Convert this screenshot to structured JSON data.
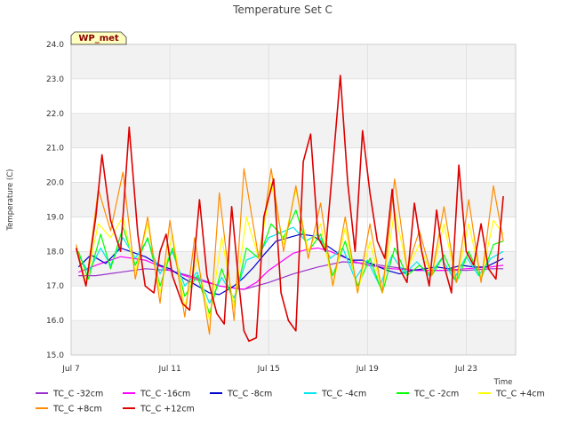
{
  "chart_data": {
    "type": "line",
    "title": "Temperature Set C",
    "xlabel": "Time",
    "ylabel": "Temperature (C)",
    "badge": "WP_met",
    "ylim": [
      15.0,
      24.0
    ],
    "yticks": [
      "15.0",
      "16.0",
      "17.0",
      "18.0",
      "19.0",
      "20.0",
      "21.0",
      "22.0",
      "23.0",
      "24.0"
    ],
    "xlim_days": [
      7,
      25
    ],
    "xticks": [
      {
        "day": 7,
        "label": "Jul 7"
      },
      {
        "day": 11,
        "label": "Jul 11"
      },
      {
        "day": 15,
        "label": "Jul 15"
      },
      {
        "day": 19,
        "label": "Jul 19"
      },
      {
        "day": 23,
        "label": "Jul 23"
      }
    ],
    "grid": true,
    "legend_position": "bottom",
    "series": [
      {
        "name": "TC_C -32cm",
        "color": "#9932cc",
        "values": [
          [
            7.3,
            17.3
          ],
          [
            8.0,
            17.3
          ],
          [
            9.0,
            17.4
          ],
          [
            10.0,
            17.5
          ],
          [
            11.0,
            17.45
          ],
          [
            12.0,
            17.25
          ],
          [
            13.0,
            17.0
          ],
          [
            14.0,
            16.9
          ],
          [
            15.0,
            17.1
          ],
          [
            16.0,
            17.35
          ],
          [
            17.0,
            17.55
          ],
          [
            18.0,
            17.7
          ],
          [
            19.0,
            17.65
          ],
          [
            20.0,
            17.55
          ],
          [
            21.0,
            17.45
          ],
          [
            22.0,
            17.45
          ],
          [
            23.0,
            17.45
          ],
          [
            24.0,
            17.5
          ],
          [
            24.5,
            17.5
          ]
        ]
      },
      {
        "name": "TC_C -16cm",
        "color": "#ff00ff",
        "values": [
          [
            7.3,
            17.4
          ],
          [
            8.0,
            17.6
          ],
          [
            9.0,
            17.85
          ],
          [
            10.0,
            17.75
          ],
          [
            11.0,
            17.45
          ],
          [
            12.0,
            17.2
          ],
          [
            13.0,
            17.0
          ],
          [
            14.0,
            16.9
          ],
          [
            14.5,
            17.1
          ],
          [
            15.0,
            17.45
          ],
          [
            16.0,
            17.95
          ],
          [
            16.5,
            18.05
          ],
          [
            17.0,
            18.1
          ],
          [
            17.5,
            18.0
          ],
          [
            18.0,
            17.85
          ],
          [
            18.5,
            17.7
          ],
          [
            19.0,
            17.6
          ],
          [
            20.0,
            17.5
          ],
          [
            21.0,
            17.45
          ],
          [
            22.0,
            17.45
          ],
          [
            23.0,
            17.5
          ],
          [
            24.0,
            17.55
          ],
          [
            24.5,
            17.6
          ]
        ]
      },
      {
        "name": "TC_C -8cm",
        "color": "#0000cd",
        "values": [
          [
            7.3,
            17.55
          ],
          [
            7.8,
            17.9
          ],
          [
            8.4,
            17.65
          ],
          [
            9.0,
            18.1
          ],
          [
            9.6,
            17.95
          ],
          [
            10.0,
            17.85
          ],
          [
            10.6,
            17.6
          ],
          [
            11.0,
            17.5
          ],
          [
            11.6,
            17.2
          ],
          [
            12.0,
            17.05
          ],
          [
            12.6,
            16.8
          ],
          [
            13.0,
            16.75
          ],
          [
            13.6,
            17.0
          ],
          [
            14.0,
            17.25
          ],
          [
            14.4,
            17.55
          ],
          [
            14.8,
            17.9
          ],
          [
            15.3,
            18.3
          ],
          [
            15.8,
            18.4
          ],
          [
            16.3,
            18.5
          ],
          [
            16.8,
            18.45
          ],
          [
            17.3,
            18.2
          ],
          [
            17.8,
            17.95
          ],
          [
            18.3,
            17.75
          ],
          [
            18.8,
            17.75
          ],
          [
            19.3,
            17.6
          ],
          [
            19.8,
            17.45
          ],
          [
            20.3,
            17.35
          ],
          [
            20.8,
            17.45
          ],
          [
            21.3,
            17.5
          ],
          [
            21.8,
            17.55
          ],
          [
            22.3,
            17.5
          ],
          [
            22.8,
            17.6
          ],
          [
            23.3,
            17.55
          ],
          [
            23.8,
            17.55
          ],
          [
            24.5,
            17.8
          ]
        ]
      },
      {
        "name": "TC_C -4cm",
        "color": "#00e5ee",
        "values": [
          [
            7.3,
            17.9
          ],
          [
            7.7,
            17.4
          ],
          [
            8.2,
            18.1
          ],
          [
            8.6,
            17.6
          ],
          [
            9.1,
            18.4
          ],
          [
            9.6,
            17.8
          ],
          [
            10.1,
            18.35
          ],
          [
            10.6,
            17.35
          ],
          [
            11.1,
            18.0
          ],
          [
            11.6,
            17.0
          ],
          [
            12.1,
            17.4
          ],
          [
            12.6,
            16.5
          ],
          [
            13.1,
            17.25
          ],
          [
            13.6,
            16.65
          ],
          [
            14.1,
            17.75
          ],
          [
            14.6,
            17.9
          ],
          [
            15.0,
            18.4
          ],
          [
            15.5,
            18.55
          ],
          [
            16.0,
            18.7
          ],
          [
            16.5,
            18.3
          ],
          [
            17.0,
            18.5
          ],
          [
            17.5,
            17.8
          ],
          [
            18.0,
            18.1
          ],
          [
            18.5,
            17.2
          ],
          [
            19.0,
            17.75
          ],
          [
            19.5,
            17.0
          ],
          [
            20.0,
            17.9
          ],
          [
            20.5,
            17.35
          ],
          [
            21.0,
            17.7
          ],
          [
            21.5,
            17.3
          ],
          [
            22.0,
            17.8
          ],
          [
            22.5,
            17.2
          ],
          [
            23.0,
            17.85
          ],
          [
            23.5,
            17.3
          ],
          [
            24.0,
            17.8
          ],
          [
            24.5,
            18.0
          ]
        ]
      },
      {
        "name": "TC_C -2cm",
        "color": "#00ff00",
        "values": [
          [
            7.3,
            18.0
          ],
          [
            7.7,
            17.2
          ],
          [
            8.2,
            18.5
          ],
          [
            8.6,
            17.5
          ],
          [
            9.1,
            18.7
          ],
          [
            9.6,
            17.6
          ],
          [
            10.1,
            18.4
          ],
          [
            10.6,
            17.0
          ],
          [
            11.1,
            18.1
          ],
          [
            11.6,
            16.7
          ],
          [
            12.1,
            17.3
          ],
          [
            12.6,
            16.2
          ],
          [
            13.1,
            17.5
          ],
          [
            13.6,
            16.5
          ],
          [
            14.1,
            18.1
          ],
          [
            14.6,
            17.8
          ],
          [
            15.1,
            18.8
          ],
          [
            15.6,
            18.4
          ],
          [
            16.1,
            19.2
          ],
          [
            16.6,
            18.0
          ],
          [
            17.1,
            18.5
          ],
          [
            17.6,
            17.3
          ],
          [
            18.1,
            18.3
          ],
          [
            18.6,
            17.0
          ],
          [
            19.1,
            17.8
          ],
          [
            19.6,
            16.8
          ],
          [
            20.1,
            18.1
          ],
          [
            20.6,
            17.3
          ],
          [
            21.1,
            17.6
          ],
          [
            21.6,
            17.3
          ],
          [
            22.1,
            17.9
          ],
          [
            22.6,
            17.1
          ],
          [
            23.1,
            18.0
          ],
          [
            23.6,
            17.2
          ],
          [
            24.1,
            18.2
          ],
          [
            24.5,
            18.3
          ]
        ]
      },
      {
        "name": "TC_C +4cm",
        "color": "#ffff00",
        "values": [
          [
            7.2,
            18.1
          ],
          [
            7.6,
            17.1
          ],
          [
            8.1,
            18.8
          ],
          [
            8.6,
            18.4
          ],
          [
            9.1,
            19.0
          ],
          [
            9.6,
            17.4
          ],
          [
            10.1,
            18.8
          ],
          [
            10.6,
            16.8
          ],
          [
            11.1,
            18.5
          ],
          [
            11.6,
            16.4
          ],
          [
            12.1,
            17.8
          ],
          [
            12.6,
            16.0
          ],
          [
            13.1,
            18.4
          ],
          [
            13.6,
            16.4
          ],
          [
            14.1,
            19.0
          ],
          [
            14.6,
            17.8
          ],
          [
            15.1,
            20.0
          ],
          [
            15.6,
            18.2
          ],
          [
            16.1,
            19.8
          ],
          [
            16.6,
            18.0
          ],
          [
            17.1,
            18.8
          ],
          [
            17.6,
            17.0
          ],
          [
            18.1,
            18.7
          ],
          [
            18.6,
            16.8
          ],
          [
            19.1,
            18.3
          ],
          [
            19.6,
            16.8
          ],
          [
            20.1,
            19.2
          ],
          [
            20.6,
            17.5
          ],
          [
            21.1,
            18.2
          ],
          [
            21.6,
            17.3
          ],
          [
            22.1,
            18.8
          ],
          [
            22.6,
            17.1
          ],
          [
            23.1,
            18.8
          ],
          [
            23.6,
            17.2
          ],
          [
            24.1,
            18.9
          ],
          [
            24.5,
            18.5
          ]
        ]
      },
      {
        "name": "TC_C +8cm",
        "color": "#ff8c00",
        "values": [
          [
            7.2,
            18.2
          ],
          [
            7.6,
            17.0
          ],
          [
            8.1,
            19.8
          ],
          [
            8.6,
            18.6
          ],
          [
            9.1,
            20.3
          ],
          [
            9.6,
            17.2
          ],
          [
            10.1,
            19.0
          ],
          [
            10.6,
            16.5
          ],
          [
            11.0,
            18.9
          ],
          [
            11.6,
            16.1
          ],
          [
            12.0,
            18.4
          ],
          [
            12.6,
            15.6
          ],
          [
            13.0,
            19.7
          ],
          [
            13.6,
            16.0
          ],
          [
            14.0,
            20.4
          ],
          [
            14.6,
            17.8
          ],
          [
            15.1,
            20.4
          ],
          [
            15.6,
            18.0
          ],
          [
            16.1,
            19.9
          ],
          [
            16.6,
            17.8
          ],
          [
            17.1,
            19.4
          ],
          [
            17.6,
            17.0
          ],
          [
            18.1,
            19.0
          ],
          [
            18.6,
            16.8
          ],
          [
            19.1,
            18.8
          ],
          [
            19.6,
            16.8
          ],
          [
            20.1,
            20.1
          ],
          [
            20.6,
            17.5
          ],
          [
            21.1,
            18.6
          ],
          [
            21.6,
            17.3
          ],
          [
            22.1,
            19.3
          ],
          [
            22.6,
            17.1
          ],
          [
            23.1,
            19.5
          ],
          [
            23.6,
            17.1
          ],
          [
            24.1,
            19.9
          ],
          [
            24.5,
            18.3
          ]
        ]
      },
      {
        "name": "TC_C +12cm",
        "color": "#dd0000",
        "values": [
          [
            7.2,
            18.1
          ],
          [
            7.6,
            17.0
          ],
          [
            8.0,
            19.0
          ],
          [
            8.25,
            20.8
          ],
          [
            8.6,
            18.9
          ],
          [
            9.0,
            18.0
          ],
          [
            9.35,
            21.6
          ],
          [
            9.7,
            18.5
          ],
          [
            10.0,
            17.0
          ],
          [
            10.35,
            16.8
          ],
          [
            10.6,
            18.0
          ],
          [
            10.85,
            18.5
          ],
          [
            11.1,
            17.3
          ],
          [
            11.5,
            16.5
          ],
          [
            11.8,
            16.3
          ],
          [
            12.2,
            19.5
          ],
          [
            12.5,
            17.3
          ],
          [
            12.9,
            16.2
          ],
          [
            13.2,
            15.9
          ],
          [
            13.5,
            19.3
          ],
          [
            13.8,
            17.0
          ],
          [
            14.0,
            15.7
          ],
          [
            14.2,
            15.4
          ],
          [
            14.5,
            15.5
          ],
          [
            14.8,
            19.0
          ],
          [
            15.2,
            20.1
          ],
          [
            15.5,
            16.8
          ],
          [
            15.8,
            16.0
          ],
          [
            16.1,
            15.7
          ],
          [
            16.4,
            20.6
          ],
          [
            16.7,
            21.4
          ],
          [
            17.0,
            18.4
          ],
          [
            17.3,
            18.0
          ],
          [
            17.6,
            20.5
          ],
          [
            17.9,
            23.1
          ],
          [
            18.2,
            20.0
          ],
          [
            18.5,
            18.0
          ],
          [
            18.8,
            21.5
          ],
          [
            19.1,
            19.7
          ],
          [
            19.4,
            18.3
          ],
          [
            19.7,
            17.8
          ],
          [
            20.0,
            19.8
          ],
          [
            20.3,
            17.5
          ],
          [
            20.6,
            17.1
          ],
          [
            20.9,
            19.4
          ],
          [
            21.2,
            18.0
          ],
          [
            21.5,
            17.0
          ],
          [
            21.8,
            19.2
          ],
          [
            22.1,
            17.6
          ],
          [
            22.4,
            16.8
          ],
          [
            22.7,
            20.5
          ],
          [
            23.0,
            18.0
          ],
          [
            23.3,
            17.6
          ],
          [
            23.6,
            18.8
          ],
          [
            23.9,
            17.5
          ],
          [
            24.2,
            17.2
          ],
          [
            24.5,
            19.6
          ]
        ]
      }
    ]
  }
}
